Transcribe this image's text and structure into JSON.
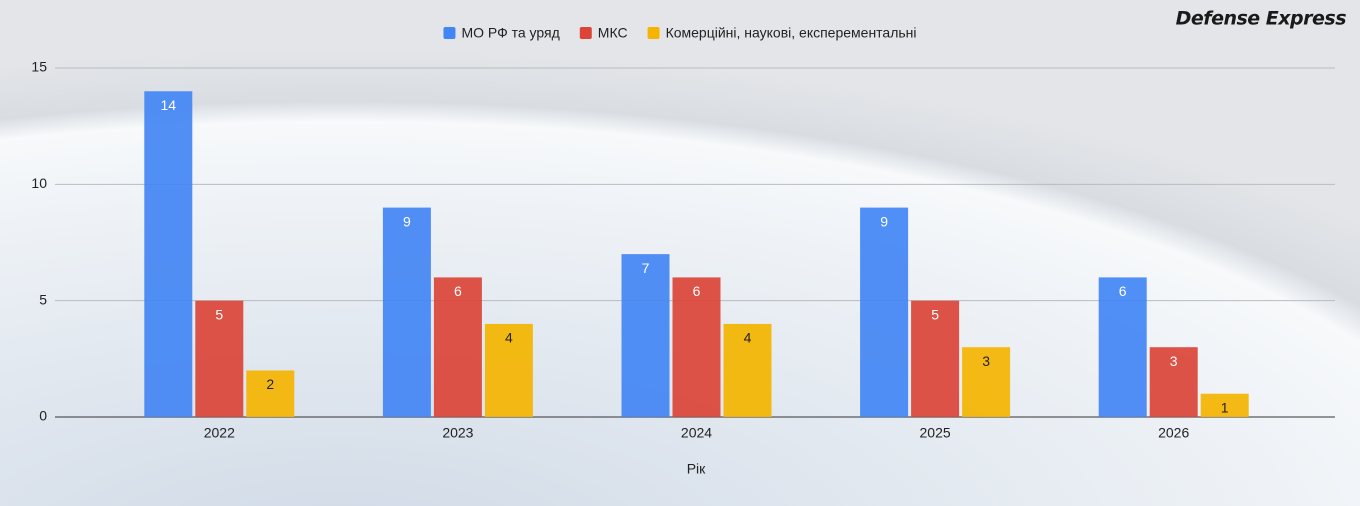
{
  "chart_data": {
    "type": "bar",
    "brand": "Defense Express",
    "x_label": "Рік",
    "categories": [
      "2022",
      "2023",
      "2024",
      "2025",
      "2026"
    ],
    "series": [
      {
        "name": "МО РФ та уряд",
        "color": "#4285f4",
        "values": [
          14,
          9,
          7,
          9,
          6
        ]
      },
      {
        "name": "МКС",
        "color": "#db4437",
        "values": [
          5,
          6,
          6,
          5,
          3
        ]
      },
      {
        "name": "Комерційні, наукові, експерементальні",
        "color": "#f4b400",
        "values": [
          2,
          4,
          4,
          3,
          1
        ]
      }
    ],
    "ylim": [
      0,
      15
    ],
    "yticks": [
      0,
      5,
      10,
      15
    ],
    "grid": true,
    "legend": "top"
  }
}
